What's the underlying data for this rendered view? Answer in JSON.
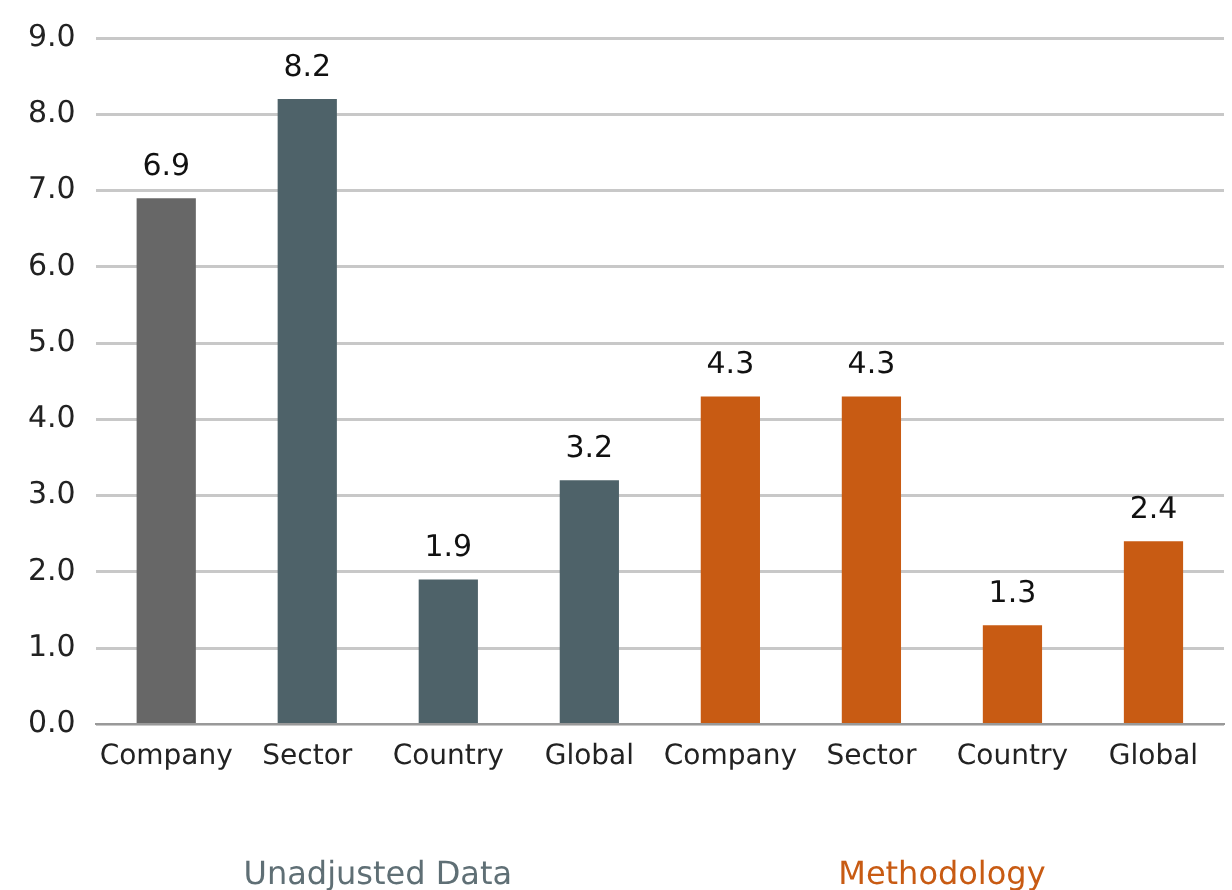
{
  "chart_data": {
    "type": "bar",
    "categories": [
      "Company",
      "Sector",
      "Country",
      "Global",
      "Company",
      "Sector",
      "Country",
      "Global"
    ],
    "values": [
      6.9,
      8.2,
      1.9,
      3.2,
      4.3,
      4.3,
      1.3,
      2.4
    ],
    "colors": [
      "#676767",
      "#4e6269",
      "#4e6269",
      "#4e6269",
      "#c85b13",
      "#c85b13",
      "#c85b13",
      "#c85b13"
    ],
    "ylim": [
      0,
      9
    ],
    "yticks": [
      {
        "value": 0,
        "label": "0.0"
      },
      {
        "value": 1,
        "label": "1.0"
      },
      {
        "value": 2,
        "label": "2.0"
      },
      {
        "value": 3,
        "label": "3.0"
      },
      {
        "value": 4,
        "label": "4.0"
      },
      {
        "value": 5,
        "label": "5.0"
      },
      {
        "value": 6,
        "label": "6.0"
      },
      {
        "value": 7,
        "label": "7.0"
      },
      {
        "value": 8,
        "label": "8.0"
      },
      {
        "value": 9,
        "label": "9.0"
      }
    ],
    "grid": "y",
    "data_labels": true,
    "legend": false,
    "annotations": [
      "Unadjusted Data",
      "Methodology"
    ]
  }
}
